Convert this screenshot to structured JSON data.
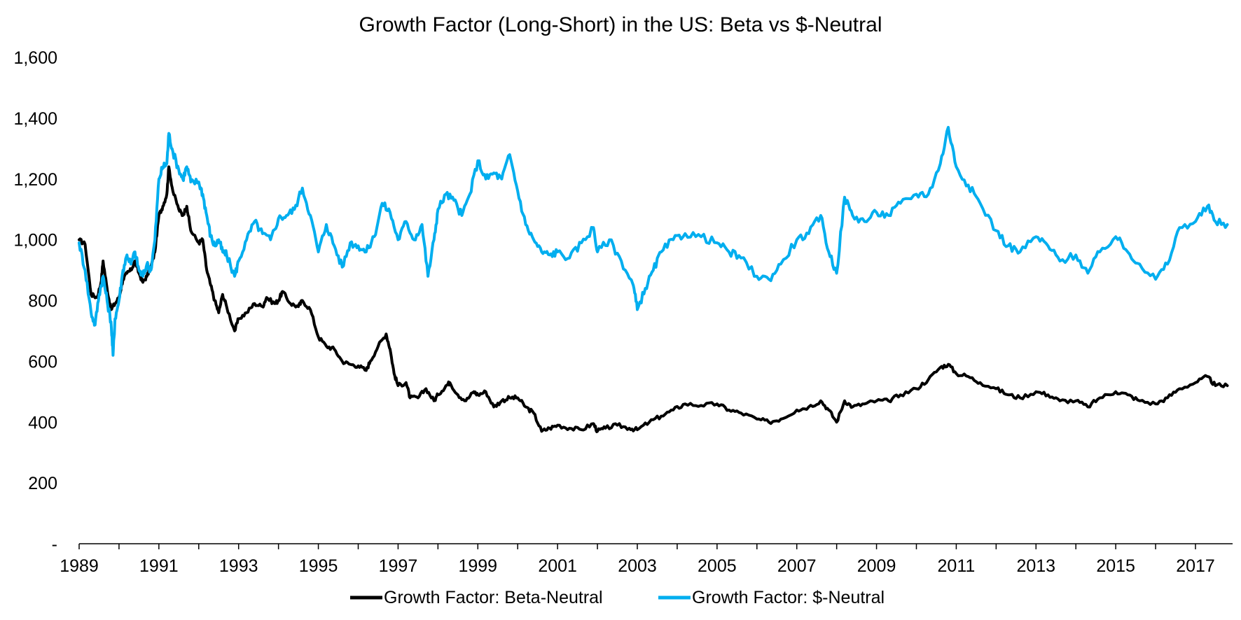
{
  "chart_data": {
    "type": "line",
    "title": "Growth Factor (Long-Short) in the US: Beta vs $-Neutral",
    "xlabel": "",
    "ylabel": "",
    "x_ticks": [
      "1989",
      "1991",
      "1993",
      "1995",
      "1997",
      "1999",
      "2001",
      "2003",
      "2005",
      "2007",
      "2009",
      "2011",
      "2013",
      "2015",
      "2017"
    ],
    "y_ticks": [
      "-",
      "200",
      "400",
      "600",
      "800",
      "1,000",
      "1,200",
      "1,400",
      "1,600"
    ],
    "xlim": [
      1989.0,
      2017.8
    ],
    "ylim": [
      0,
      1600
    ],
    "grid": false,
    "legend_position": "bottom",
    "series": [
      {
        "name": "Growth Factor: Beta-Neutral",
        "color": "#000000",
        "points": [
          [
            1989.0,
            1000
          ],
          [
            1989.15,
            985
          ],
          [
            1989.3,
            820
          ],
          [
            1989.45,
            810
          ],
          [
            1989.55,
            860
          ],
          [
            1989.6,
            930
          ],
          [
            1989.7,
            840
          ],
          [
            1989.8,
            770
          ],
          [
            1989.9,
            790
          ],
          [
            1990.0,
            810
          ],
          [
            1990.1,
            870
          ],
          [
            1990.2,
            890
          ],
          [
            1990.3,
            900
          ],
          [
            1990.4,
            930
          ],
          [
            1990.5,
            890
          ],
          [
            1990.6,
            860
          ],
          [
            1990.7,
            880
          ],
          [
            1990.8,
            910
          ],
          [
            1990.9,
            960
          ],
          [
            1991.0,
            1080
          ],
          [
            1991.1,
            1110
          ],
          [
            1991.2,
            1150
          ],
          [
            1991.25,
            1240
          ],
          [
            1991.35,
            1160
          ],
          [
            1991.5,
            1100
          ],
          [
            1991.6,
            1080
          ],
          [
            1991.7,
            1110
          ],
          [
            1991.8,
            1030
          ],
          [
            1992.0,
            990
          ],
          [
            1992.1,
            1000
          ],
          [
            1992.2,
            900
          ],
          [
            1992.3,
            850
          ],
          [
            1992.4,
            800
          ],
          [
            1992.5,
            760
          ],
          [
            1992.6,
            820
          ],
          [
            1992.7,
            780
          ],
          [
            1992.9,
            700
          ],
          [
            1993.0,
            740
          ],
          [
            1993.2,
            760
          ],
          [
            1993.4,
            790
          ],
          [
            1993.6,
            780
          ],
          [
            1993.7,
            810
          ],
          [
            1993.9,
            790
          ],
          [
            1994.0,
            800
          ],
          [
            1994.1,
            830
          ],
          [
            1994.3,
            790
          ],
          [
            1994.5,
            780
          ],
          [
            1994.6,
            800
          ],
          [
            1994.8,
            770
          ],
          [
            1995.0,
            680
          ],
          [
            1995.2,
            650
          ],
          [
            1995.4,
            640
          ],
          [
            1995.6,
            600
          ],
          [
            1995.8,
            590
          ],
          [
            1996.0,
            585
          ],
          [
            1996.2,
            570
          ],
          [
            1996.3,
            600
          ],
          [
            1996.5,
            650
          ],
          [
            1996.7,
            690
          ],
          [
            1996.8,
            640
          ],
          [
            1996.9,
            560
          ],
          [
            1997.0,
            520
          ],
          [
            1997.2,
            530
          ],
          [
            1997.3,
            480
          ],
          [
            1997.5,
            480
          ],
          [
            1997.7,
            510
          ],
          [
            1997.9,
            470
          ],
          [
            1998.0,
            490
          ],
          [
            1998.2,
            520
          ],
          [
            1998.3,
            530
          ],
          [
            1998.5,
            490
          ],
          [
            1998.7,
            470
          ],
          [
            1998.9,
            500
          ],
          [
            1999.0,
            490
          ],
          [
            1999.2,
            500
          ],
          [
            1999.4,
            450
          ],
          [
            1999.6,
            470
          ],
          [
            1999.8,
            480
          ],
          [
            2000.0,
            480
          ],
          [
            2000.2,
            450
          ],
          [
            2000.4,
            430
          ],
          [
            2000.6,
            370
          ],
          [
            2000.8,
            380
          ],
          [
            2001.0,
            390
          ],
          [
            2001.3,
            380
          ],
          [
            2001.6,
            375
          ],
          [
            2001.9,
            395
          ],
          [
            2002.0,
            370
          ],
          [
            2002.2,
            380
          ],
          [
            2002.5,
            390
          ],
          [
            2002.8,
            380
          ],
          [
            2003.0,
            375
          ],
          [
            2003.3,
            400
          ],
          [
            2003.6,
            420
          ],
          [
            2003.9,
            440
          ],
          [
            2004.2,
            460
          ],
          [
            2004.6,
            455
          ],
          [
            2005.0,
            460
          ],
          [
            2005.3,
            440
          ],
          [
            2005.6,
            430
          ],
          [
            2006.0,
            410
          ],
          [
            2006.3,
            400
          ],
          [
            2006.6,
            410
          ],
          [
            2007.0,
            440
          ],
          [
            2007.3,
            450
          ],
          [
            2007.6,
            470
          ],
          [
            2007.8,
            440
          ],
          [
            2008.0,
            400
          ],
          [
            2008.2,
            470
          ],
          [
            2008.4,
            450
          ],
          [
            2008.7,
            460
          ],
          [
            2009.0,
            470
          ],
          [
            2009.3,
            470
          ],
          [
            2009.6,
            490
          ],
          [
            2010.0,
            510
          ],
          [
            2010.3,
            540
          ],
          [
            2010.6,
            580
          ],
          [
            2010.8,
            590
          ],
          [
            2011.0,
            560
          ],
          [
            2011.3,
            550
          ],
          [
            2011.6,
            530
          ],
          [
            2012.0,
            510
          ],
          [
            2012.3,
            490
          ],
          [
            2012.6,
            480
          ],
          [
            2013.0,
            500
          ],
          [
            2013.3,
            490
          ],
          [
            2013.6,
            470
          ],
          [
            2014.0,
            470
          ],
          [
            2014.3,
            450
          ],
          [
            2014.6,
            480
          ],
          [
            2015.0,
            500
          ],
          [
            2015.3,
            490
          ],
          [
            2015.6,
            470
          ],
          [
            2016.0,
            460
          ],
          [
            2016.3,
            480
          ],
          [
            2016.6,
            510
          ],
          [
            2017.0,
            530
          ],
          [
            2017.3,
            550
          ],
          [
            2017.5,
            520
          ],
          [
            2017.8,
            520
          ]
        ]
      },
      {
        "name": "Growth Factor: $-Neutral",
        "color": "#00AEEF",
        "points": [
          [
            1989.0,
            990
          ],
          [
            1989.15,
            900
          ],
          [
            1989.3,
            760
          ],
          [
            1989.4,
            720
          ],
          [
            1989.5,
            820
          ],
          [
            1989.6,
            880
          ],
          [
            1989.7,
            800
          ],
          [
            1989.8,
            730
          ],
          [
            1989.85,
            620
          ],
          [
            1989.9,
            740
          ],
          [
            1990.0,
            800
          ],
          [
            1990.1,
            900
          ],
          [
            1990.2,
            950
          ],
          [
            1990.3,
            920
          ],
          [
            1990.4,
            960
          ],
          [
            1990.5,
            900
          ],
          [
            1990.6,
            880
          ],
          [
            1990.7,
            920
          ],
          [
            1990.8,
            900
          ],
          [
            1990.9,
            1000
          ],
          [
            1991.0,
            1200
          ],
          [
            1991.1,
            1240
          ],
          [
            1991.2,
            1250
          ],
          [
            1991.25,
            1350
          ],
          [
            1991.35,
            1290
          ],
          [
            1991.5,
            1230
          ],
          [
            1991.6,
            1200
          ],
          [
            1991.7,
            1240
          ],
          [
            1991.8,
            1190
          ],
          [
            1992.0,
            1190
          ],
          [
            1992.1,
            1150
          ],
          [
            1992.2,
            1080
          ],
          [
            1992.3,
            1010
          ],
          [
            1992.4,
            980
          ],
          [
            1992.5,
            1000
          ],
          [
            1992.6,
            960
          ],
          [
            1992.7,
            950
          ],
          [
            1992.9,
            880
          ],
          [
            1993.0,
            930
          ],
          [
            1993.2,
            1000
          ],
          [
            1993.4,
            1060
          ],
          [
            1993.6,
            1020
          ],
          [
            1993.8,
            1000
          ],
          [
            1994.0,
            1070
          ],
          [
            1994.2,
            1080
          ],
          [
            1994.4,
            1100
          ],
          [
            1994.6,
            1170
          ],
          [
            1994.8,
            1080
          ],
          [
            1995.0,
            960
          ],
          [
            1995.2,
            1050
          ],
          [
            1995.4,
            980
          ],
          [
            1995.6,
            910
          ],
          [
            1995.8,
            990
          ],
          [
            1996.0,
            980
          ],
          [
            1996.2,
            960
          ],
          [
            1996.4,
            1010
          ],
          [
            1996.6,
            1120
          ],
          [
            1996.8,
            1090
          ],
          [
            1997.0,
            1000
          ],
          [
            1997.2,
            1060
          ],
          [
            1997.4,
            1000
          ],
          [
            1997.6,
            1050
          ],
          [
            1997.75,
            880
          ],
          [
            1997.9,
            1000
          ],
          [
            1998.0,
            1100
          ],
          [
            1998.2,
            1150
          ],
          [
            1998.4,
            1130
          ],
          [
            1998.6,
            1080
          ],
          [
            1998.8,
            1150
          ],
          [
            1999.0,
            1260
          ],
          [
            1999.2,
            1200
          ],
          [
            1999.4,
            1220
          ],
          [
            1999.6,
            1200
          ],
          [
            1999.8,
            1280
          ],
          [
            2000.0,
            1160
          ],
          [
            2000.2,
            1050
          ],
          [
            2000.4,
            1000
          ],
          [
            2000.6,
            960
          ],
          [
            2000.8,
            950
          ],
          [
            2001.0,
            960
          ],
          [
            2001.3,
            940
          ],
          [
            2001.6,
            990
          ],
          [
            2001.9,
            1040
          ],
          [
            2002.0,
            960
          ],
          [
            2002.3,
            1000
          ],
          [
            2002.6,
            930
          ],
          [
            2002.9,
            850
          ],
          [
            2003.0,
            770
          ],
          [
            2003.2,
            840
          ],
          [
            2003.4,
            900
          ],
          [
            2003.6,
            960
          ],
          [
            2003.9,
            1000
          ],
          [
            2004.2,
            1020
          ],
          [
            2004.6,
            1010
          ],
          [
            2005.0,
            990
          ],
          [
            2005.3,
            960
          ],
          [
            2005.6,
            940
          ],
          [
            2006.0,
            880
          ],
          [
            2006.3,
            870
          ],
          [
            2006.6,
            920
          ],
          [
            2007.0,
            1000
          ],
          [
            2007.3,
            1020
          ],
          [
            2007.6,
            1080
          ],
          [
            2007.8,
            960
          ],
          [
            2008.0,
            890
          ],
          [
            2008.2,
            1140
          ],
          [
            2008.4,
            1080
          ],
          [
            2008.7,
            1060
          ],
          [
            2009.0,
            1090
          ],
          [
            2009.3,
            1080
          ],
          [
            2009.6,
            1120
          ],
          [
            2010.0,
            1150
          ],
          [
            2010.3,
            1150
          ],
          [
            2010.6,
            1250
          ],
          [
            2010.8,
            1370
          ],
          [
            2011.0,
            1240
          ],
          [
            2011.3,
            1180
          ],
          [
            2011.6,
            1120
          ],
          [
            2012.0,
            1030
          ],
          [
            2012.3,
            980
          ],
          [
            2012.6,
            960
          ],
          [
            2013.0,
            1010
          ],
          [
            2013.3,
            980
          ],
          [
            2013.6,
            930
          ],
          [
            2014.0,
            950
          ],
          [
            2014.3,
            890
          ],
          [
            2014.6,
            960
          ],
          [
            2015.0,
            1010
          ],
          [
            2015.3,
            960
          ],
          [
            2015.6,
            920
          ],
          [
            2016.0,
            870
          ],
          [
            2016.3,
            920
          ],
          [
            2016.6,
            1040
          ],
          [
            2017.0,
            1060
          ],
          [
            2017.3,
            1110
          ],
          [
            2017.5,
            1060
          ],
          [
            2017.8,
            1050
          ]
        ]
      }
    ]
  }
}
